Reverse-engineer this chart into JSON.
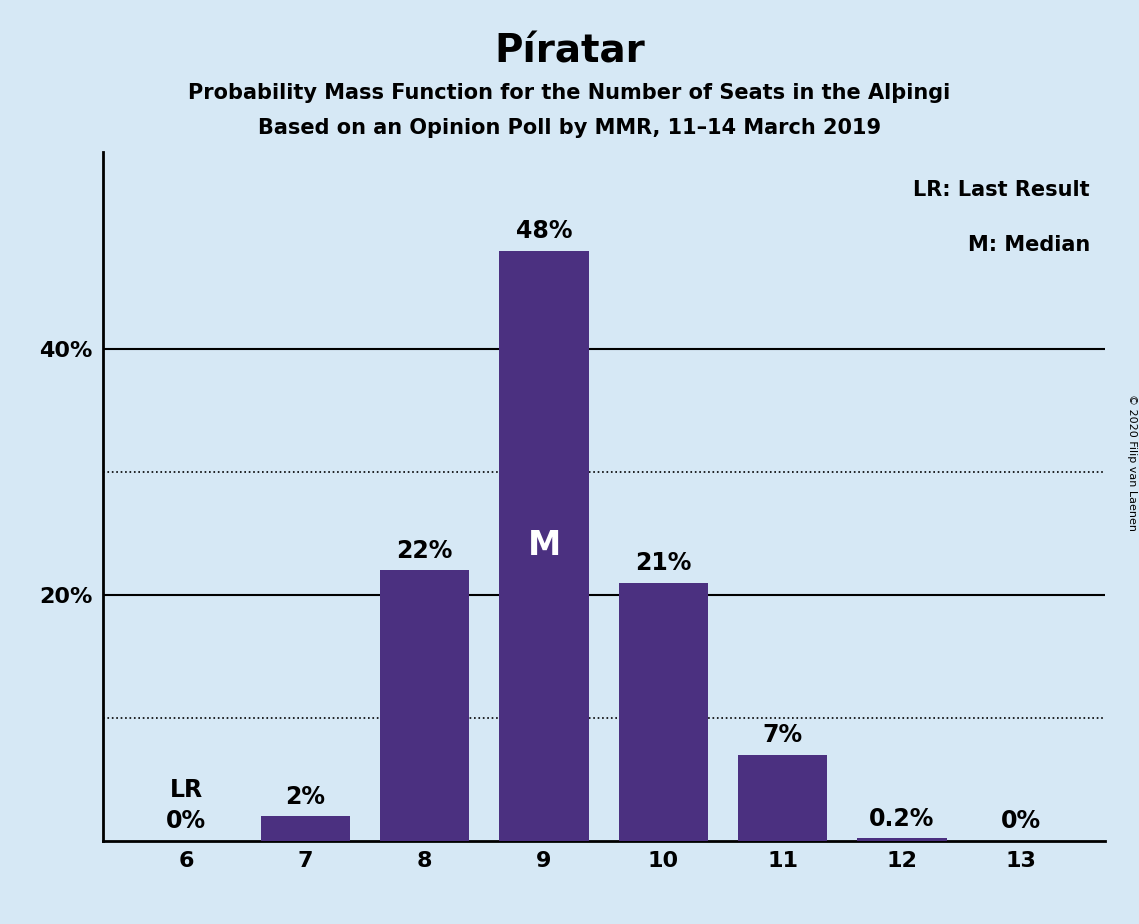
{
  "title": "Píratar",
  "subtitle1": "Probability Mass Function for the Number of Seats in the Alþingi",
  "subtitle2": "Based on an Opinion Poll by MMR, 11–14 March 2019",
  "categories": [
    6,
    7,
    8,
    9,
    10,
    11,
    12,
    13
  ],
  "values": [
    0.0,
    2.0,
    22.0,
    48.0,
    21.0,
    7.0,
    0.2,
    0.0
  ],
  "bar_labels": [
    "0%",
    "2%",
    "22%",
    "48%",
    "21%",
    "7%",
    "0.2%",
    "0%"
  ],
  "bar_color": "#4B3080",
  "background_color": "#D6E8F5",
  "label_lr": "LR",
  "label_lr_value": "0%",
  "lr_seat": 6,
  "median_seat": 9,
  "median_label": "M",
  "legend_lr": "LR: Last Result",
  "legend_m": "M: Median",
  "ytick_positions": [
    0,
    10,
    20,
    30,
    40,
    50
  ],
  "ytick_labels": [
    "",
    "",
    "20%",
    "",
    "40%",
    ""
  ],
  "solid_gridlines": [
    20,
    40
  ],
  "dotted_gridlines": [
    10,
    30
  ],
  "ylim": [
    0,
    56
  ],
  "copyright": "© 2020 Filip van Laenen",
  "title_fontsize": 28,
  "subtitle_fontsize": 15,
  "bar_label_fontsize": 17,
  "axis_tick_fontsize": 16,
  "legend_fontsize": 15,
  "median_label_fontsize": 24,
  "median_label_color": "#FFFFFF"
}
